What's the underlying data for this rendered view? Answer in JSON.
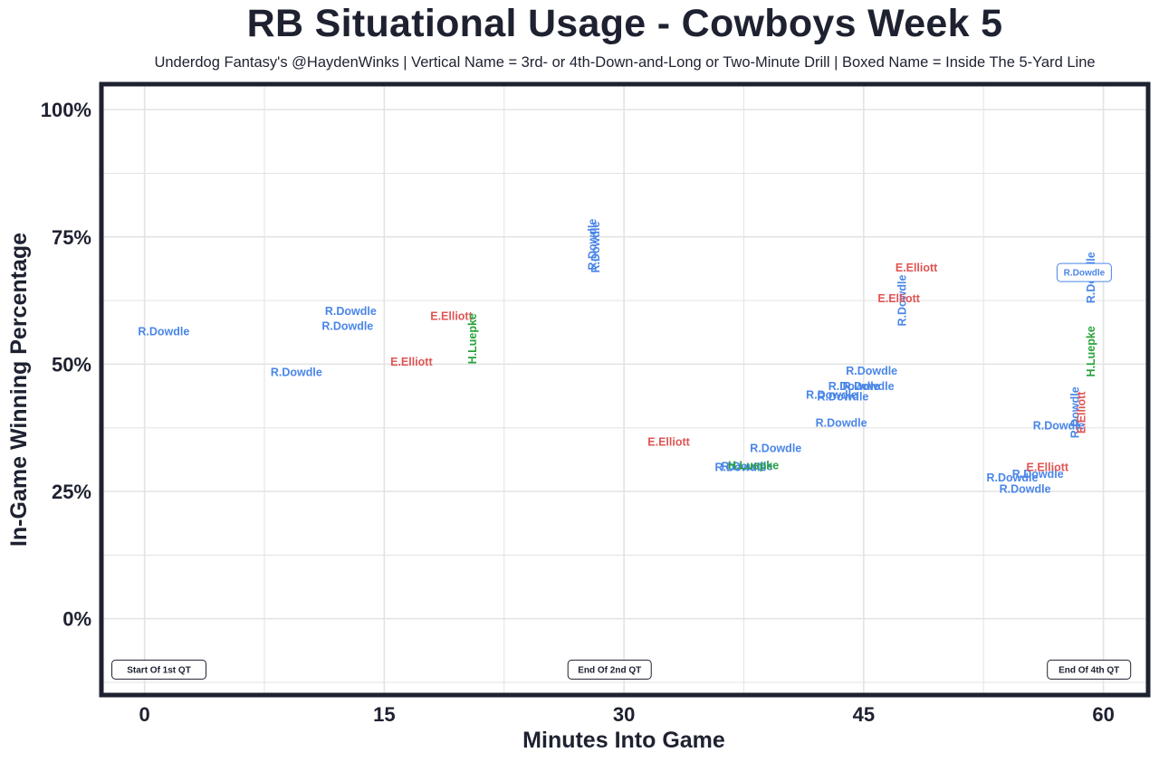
{
  "header": {
    "title": "RB Situational Usage - Cowboys Week 5",
    "subtitle": "Underdog Fantasy's @HaydenWinks | Vertical Name = 3rd- or 4th-Down-and-Long or Two-Minute Drill | Boxed Name = Inside The 5-Yard Line"
  },
  "colors": {
    "R.Dowdle": "#4a86e8",
    "E.Elliott": "#e05555",
    "H.Luepke": "#27a33a",
    "frame": "#1e2130",
    "grid": "#e3e3e3"
  },
  "chart_data": {
    "type": "scatter",
    "title": "RB Situational Usage - Cowboys Week 5",
    "xlabel": "Minutes Into Game",
    "ylabel": "In-Game Winning Percentage",
    "xlim": [
      -2.7,
      62.8
    ],
    "ylim": [
      -15,
      105
    ],
    "xticks": [
      0,
      15,
      30,
      45,
      60
    ],
    "xtick_labels": [
      "0",
      "15",
      "30",
      "45",
      "60"
    ],
    "yticks": [
      0,
      25,
      50,
      75,
      100
    ],
    "ytick_labels": [
      "0%",
      "25%",
      "50%",
      "75%",
      "100%"
    ],
    "grid": true,
    "series": [
      {
        "name": "R.Dowdle",
        "points": [
          {
            "x": 1.2,
            "y": 56.5,
            "vertical": false,
            "boxed": false
          },
          {
            "x": 9.5,
            "y": 48.5,
            "vertical": false,
            "boxed": false
          },
          {
            "x": 12.9,
            "y": 60.5,
            "vertical": false,
            "boxed": false
          },
          {
            "x": 12.7,
            "y": 57.5,
            "vertical": false,
            "boxed": false
          },
          {
            "x": 28.0,
            "y": 73.5,
            "vertical": true,
            "boxed": false
          },
          {
            "x": 28.2,
            "y": 73.0,
            "vertical": true,
            "boxed": false
          },
          {
            "x": 37.7,
            "y": 30.0,
            "vertical": false,
            "boxed": false
          },
          {
            "x": 37.3,
            "y": 29.8,
            "vertical": false,
            "boxed": false
          },
          {
            "x": 39.5,
            "y": 33.5,
            "vertical": false,
            "boxed": false
          },
          {
            "x": 43.6,
            "y": 38.5,
            "vertical": false,
            "boxed": false
          },
          {
            "x": 43.0,
            "y": 44.0,
            "vertical": false,
            "boxed": false
          },
          {
            "x": 43.7,
            "y": 43.7,
            "vertical": false,
            "boxed": false
          },
          {
            "x": 44.4,
            "y": 45.7,
            "vertical": false,
            "boxed": false
          },
          {
            "x": 45.3,
            "y": 45.7,
            "vertical": false,
            "boxed": false
          },
          {
            "x": 45.5,
            "y": 48.7,
            "vertical": false,
            "boxed": false
          },
          {
            "x": 47.4,
            "y": 62.5,
            "vertical": true,
            "boxed": false
          },
          {
            "x": 54.3,
            "y": 27.8,
            "vertical": false,
            "boxed": false
          },
          {
            "x": 55.9,
            "y": 28.5,
            "vertical": false,
            "boxed": false
          },
          {
            "x": 55.1,
            "y": 25.5,
            "vertical": false,
            "boxed": false
          },
          {
            "x": 57.2,
            "y": 38.0,
            "vertical": false,
            "boxed": false
          },
          {
            "x": 58.2,
            "y": 40.5,
            "vertical": true,
            "boxed": false
          },
          {
            "x": 59.2,
            "y": 67.0,
            "vertical": true,
            "boxed": false
          },
          {
            "x": 58.8,
            "y": 68.0,
            "vertical": false,
            "boxed": true
          }
        ]
      },
      {
        "name": "E.Elliott",
        "points": [
          {
            "x": 19.2,
            "y": 59.5,
            "vertical": false,
            "boxed": false
          },
          {
            "x": 16.7,
            "y": 50.5,
            "vertical": false,
            "boxed": false
          },
          {
            "x": 32.8,
            "y": 34.8,
            "vertical": false,
            "boxed": false
          },
          {
            "x": 48.3,
            "y": 69.0,
            "vertical": false,
            "boxed": false
          },
          {
            "x": 47.2,
            "y": 63.0,
            "vertical": false,
            "boxed": false
          },
          {
            "x": 56.5,
            "y": 29.8,
            "vertical": false,
            "boxed": false
          },
          {
            "x": 58.6,
            "y": 40.5,
            "vertical": true,
            "boxed": false
          }
        ]
      },
      {
        "name": "H.Luepke",
        "points": [
          {
            "x": 20.5,
            "y": 55.0,
            "vertical": true,
            "boxed": false
          },
          {
            "x": 38.1,
            "y": 30.2,
            "vertical": false,
            "boxed": false
          },
          {
            "x": 59.2,
            "y": 52.5,
            "vertical": true,
            "boxed": false
          }
        ]
      }
    ],
    "annotations": [
      {
        "text": "Start Of 1st QT",
        "x": 0.9,
        "y": -10
      },
      {
        "text": "End Of 2nd QT",
        "x": 29.1,
        "y": -10
      },
      {
        "text": "End Of 4th QT",
        "x": 59.1,
        "y": -10
      }
    ]
  }
}
